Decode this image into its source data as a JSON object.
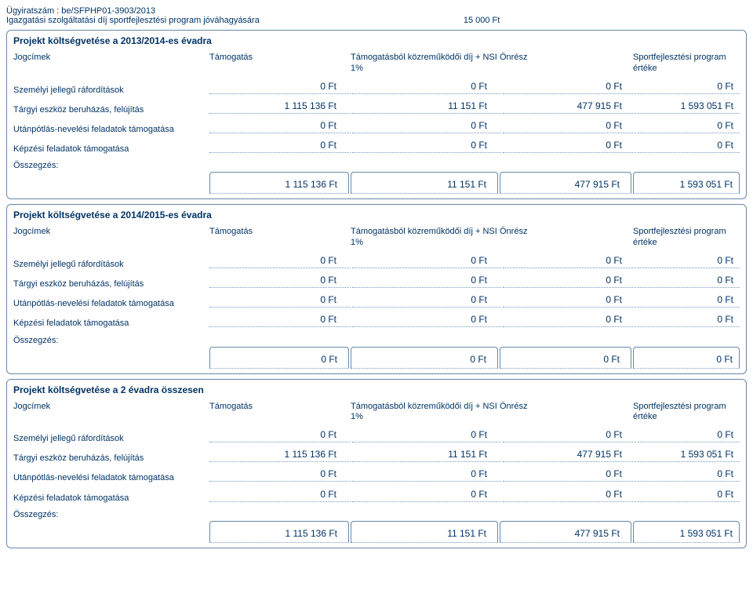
{
  "header": {
    "caseNumber": "Ügyiratszám : be/SFPHP01-3903/2013",
    "feeLabel": "Igazgatási szolgáltatási díj sportfejlesztési program jóváhagyására",
    "feeAmount": "15 000 Ft"
  },
  "columnHeaders": {
    "c0": "Jogcímek",
    "c1": "Támogatás",
    "c2": "Támogatásból közreműködői díj + NSI 1%",
    "c3": "Önrész",
    "c4": "Sportfejlesztési program értéke"
  },
  "rowLabels": {
    "r1": "Személyi jellegű ráfordítások",
    "r2": "Tárgyi eszköz beruházás, felújítás",
    "r3": "Utánpótlás-nevelési feladatok támogatása",
    "r4": "Képzési feladatok támogatása"
  },
  "summaryLabel": "Összegzés:",
  "sections": [
    {
      "title": "Projekt költségvetése a 2013/2014-es évadra",
      "rows": [
        {
          "c1": "0 Ft",
          "c2": "0 Ft",
          "c3": "0 Ft",
          "c4": "0 Ft"
        },
        {
          "c1": "1 115 136 Ft",
          "c2": "11 151 Ft",
          "c3": "477 915 Ft",
          "c4": "1 593 051 Ft"
        },
        {
          "c1": "0 Ft",
          "c2": "0 Ft",
          "c3": "0 Ft",
          "c4": "0 Ft"
        },
        {
          "c1": "0 Ft",
          "c2": "0 Ft",
          "c3": "0 Ft",
          "c4": "0 Ft"
        }
      ],
      "summary": {
        "c1": "1 115 136 Ft",
        "c2": "11 151 Ft",
        "c3": "477 915 Ft",
        "c4": "1 593 051 Ft"
      }
    },
    {
      "title": "Projekt költségvetése a 2014/2015-es évadra",
      "rows": [
        {
          "c1": "0 Ft",
          "c2": "0 Ft",
          "c3": "0 Ft",
          "c4": "0 Ft"
        },
        {
          "c1": "0 Ft",
          "c2": "0 Ft",
          "c3": "0 Ft",
          "c4": "0 Ft"
        },
        {
          "c1": "0 Ft",
          "c2": "0 Ft",
          "c3": "0 Ft",
          "c4": "0 Ft"
        },
        {
          "c1": "0 Ft",
          "c2": "0 Ft",
          "c3": "0 Ft",
          "c4": "0 Ft"
        }
      ],
      "summary": {
        "c1": "0 Ft",
        "c2": "0 Ft",
        "c3": "0 Ft",
        "c4": "0 Ft"
      }
    },
    {
      "title": "Projekt költségvetése a 2 évadra összesen",
      "rows": [
        {
          "c1": "0 Ft",
          "c2": "0 Ft",
          "c3": "0 Ft",
          "c4": "0 Ft"
        },
        {
          "c1": "1 115 136 Ft",
          "c2": "11 151 Ft",
          "c3": "477 915 Ft",
          "c4": "1 593 051 Ft"
        },
        {
          "c1": "0 Ft",
          "c2": "0 Ft",
          "c3": "0 Ft",
          "c4": "0 Ft"
        },
        {
          "c1": "0 Ft",
          "c2": "0 Ft",
          "c3": "0 Ft",
          "c4": "0 Ft"
        }
      ],
      "summary": {
        "c1": "1 115 136 Ft",
        "c2": "11 151 Ft",
        "c3": "477 915 Ft",
        "c4": "1 593 051 Ft"
      }
    }
  ]
}
